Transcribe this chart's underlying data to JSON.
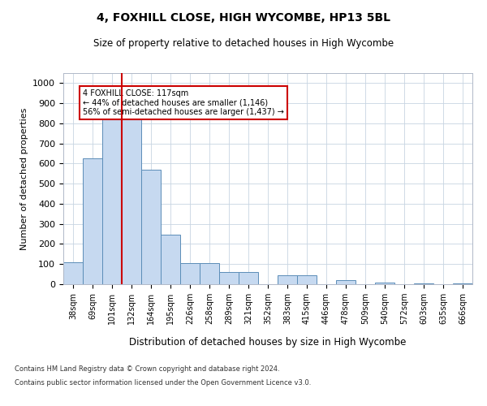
{
  "title1": "4, FOXHILL CLOSE, HIGH WYCOMBE, HP13 5BL",
  "title2": "Size of property relative to detached houses in High Wycombe",
  "xlabel": "Distribution of detached houses by size in High Wycombe",
  "ylabel": "Number of detached properties",
  "categories": [
    "38sqm",
    "69sqm",
    "101sqm",
    "132sqm",
    "164sqm",
    "195sqm",
    "226sqm",
    "258sqm",
    "289sqm",
    "321sqm",
    "352sqm",
    "383sqm",
    "415sqm",
    "446sqm",
    "478sqm",
    "509sqm",
    "540sqm",
    "572sqm",
    "603sqm",
    "635sqm",
    "666sqm"
  ],
  "values": [
    110,
    625,
    820,
    820,
    570,
    245,
    105,
    105,
    60,
    60,
    0,
    45,
    45,
    0,
    20,
    0,
    10,
    0,
    5,
    0,
    5
  ],
  "bar_color": "#c6d9f0",
  "bar_edge_color": "#5b8db8",
  "marker_color": "#cc0000",
  "annotation_text": "4 FOXHILL CLOSE: 117sqm\n← 44% of detached houses are smaller (1,146)\n56% of semi-detached houses are larger (1,437) →",
  "annotation_box_edgecolor": "#cc0000",
  "footer1": "Contains HM Land Registry data © Crown copyright and database right 2024.",
  "footer2": "Contains public sector information licensed under the Open Government Licence v3.0.",
  "ylim": [
    0,
    1050
  ],
  "yticks": [
    0,
    100,
    200,
    300,
    400,
    500,
    600,
    700,
    800,
    900,
    1000
  ],
  "bg_color": "#ffffff",
  "grid_color": "#c8d4e2"
}
